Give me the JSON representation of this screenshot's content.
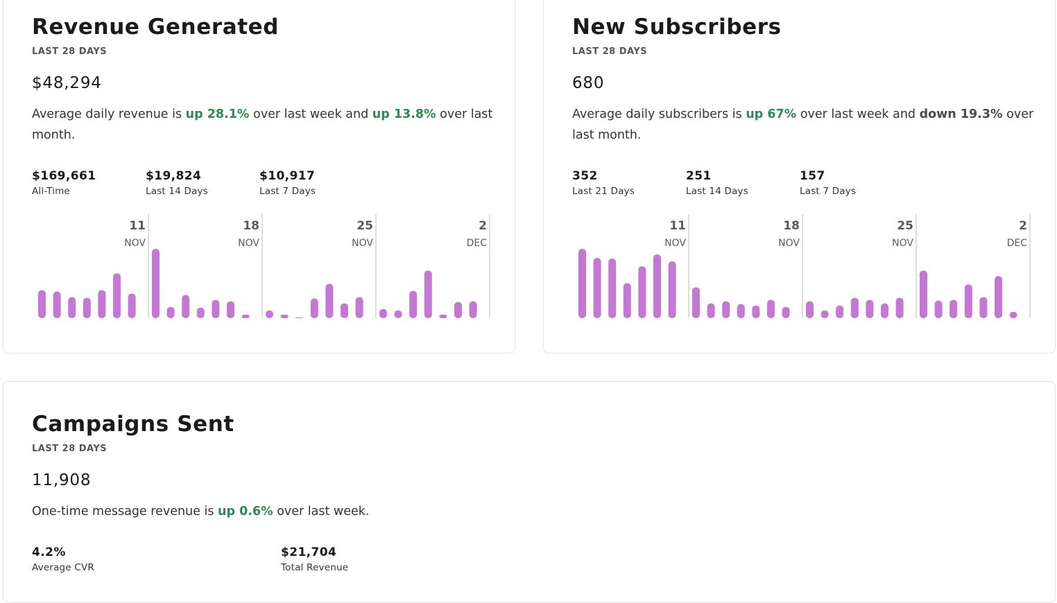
{
  "revenue": {
    "title": "Revenue Generated",
    "period": "LAST 28 DAYS",
    "total": "$48,294",
    "summary": {
      "prefix": "Average daily revenue is ",
      "change1": "up 28.1%",
      "middle": " over last week and ",
      "change2": "up 13.8%",
      "suffix": " over last month."
    },
    "stats": [
      {
        "value": "$169,661",
        "label": "All-Time"
      },
      {
        "value": "$19,824",
        "label": "Last 14 Days"
      },
      {
        "value": "$10,917",
        "label": "Last 7 Days"
      }
    ]
  },
  "subscribers": {
    "title": "New Subscribers",
    "period": "LAST 28 DAYS",
    "total": "680",
    "summary": {
      "prefix": "Average daily subscribers is ",
      "change1": "up 67%",
      "middle": " over last week and ",
      "change2": "down 19.3%",
      "suffix": " over last month."
    },
    "stats": [
      {
        "value": "352",
        "label": "Last 21 Days"
      },
      {
        "value": "251",
        "label": "Last 14 Days"
      },
      {
        "value": "157",
        "label": "Last 7 Days"
      }
    ]
  },
  "campaigns": {
    "title": "Campaigns Sent",
    "period": "LAST 28 DAYS",
    "total": "11,908",
    "summary": {
      "prefix": "One-time message revenue is ",
      "change1": "up 0.6%",
      "suffix": " over last week."
    },
    "stats": [
      {
        "value": "4.2%",
        "label": "Average CVR"
      },
      {
        "value": "$21,704",
        "label": "Total Revenue"
      }
    ]
  },
  "colors": {
    "bar": "#c577d4",
    "positive": "#2f8a52",
    "negative": "#4a4a4a"
  },
  "chart_data": [
    {
      "type": "bar",
      "chart": "revenue",
      "weeks": [
        {
          "day": "11",
          "month": "NOV"
        },
        {
          "day": "18",
          "month": "NOV"
        },
        {
          "day": "25",
          "month": "NOV"
        },
        {
          "day": "2",
          "month": "DEC"
        }
      ],
      "values": [
        40,
        38,
        30,
        29,
        40,
        64,
        35,
        99,
        16,
        33,
        15,
        26,
        24,
        5,
        11,
        5,
        1,
        28,
        49,
        21,
        30,
        13,
        11,
        39,
        68,
        5,
        23,
        24
      ]
    },
    {
      "type": "bar",
      "chart": "subscribers",
      "weeks": [
        {
          "day": "11",
          "month": "NOV"
        },
        {
          "day": "18",
          "month": "NOV"
        },
        {
          "day": "25",
          "month": "NOV"
        },
        {
          "day": "2",
          "month": "DEC"
        }
      ],
      "values": [
        99,
        86,
        85,
        50,
        74,
        91,
        81,
        44,
        21,
        24,
        20,
        18,
        26,
        16,
        24,
        11,
        18,
        29,
        26,
        21,
        29,
        68,
        25,
        26,
        48,
        30,
        60,
        9
      ]
    }
  ]
}
